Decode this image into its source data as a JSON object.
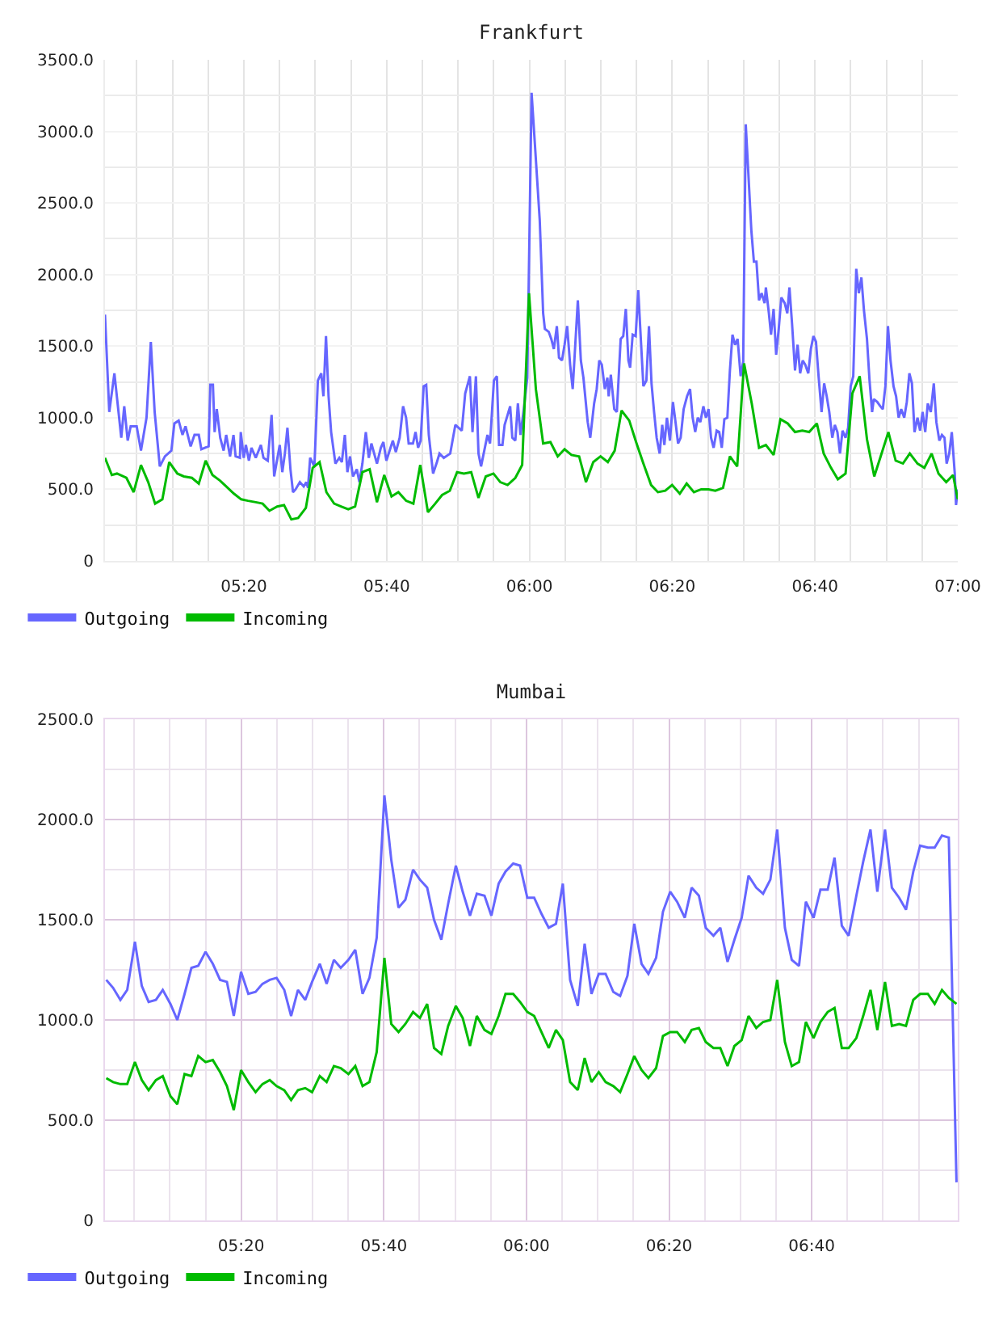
{
  "chart_data": [
    {
      "type": "line",
      "title": "Frankfurt",
      "series": [
        {
          "name": "Outgoing",
          "color": "#6666ff",
          "x": [
            5.009,
            5.019,
            5.031,
            5.047,
            5.054,
            5.062,
            5.069,
            5.083,
            5.093,
            5.106,
            5.116,
            5.125,
            5.137,
            5.149,
            5.164,
            5.171,
            5.181,
            5.19,
            5.197,
            5.209,
            5.218,
            5.228,
            5.234,
            5.251,
            5.255,
            5.261,
            5.265,
            5.27,
            5.278,
            5.286,
            5.292,
            5.301,
            5.309,
            5.314,
            5.324,
            5.326,
            5.333,
            5.338,
            5.345,
            5.351,
            5.361,
            5.373,
            5.379,
            5.389,
            5.398,
            5.404,
            5.417,
            5.423,
            5.429,
            5.435,
            5.442,
            5.448,
            5.454,
            5.464,
            5.473,
            5.479,
            5.483,
            5.488,
            5.498,
            5.506,
            5.514,
            5.519,
            5.525,
            5.531,
            5.537,
            5.547,
            5.556,
            5.562,
            5.569,
            5.575,
            5.581,
            5.588,
            5.597,
            5.603,
            5.61,
            5.618,
            5.625,
            5.631,
            5.644,
            5.653,
            5.659,
            5.666,
            5.681,
            5.688,
            5.697,
            5.705,
            5.712,
            5.718,
            5.728,
            5.734,
            5.74,
            5.746,
            5.753,
            5.759,
            5.765,
            5.775,
            5.784,
            5.79,
            5.8,
            5.815,
            5.827,
            5.842,
            5.85,
            5.861,
            5.867,
            5.875,
            5.881,
            5.887,
            5.902,
            5.908,
            5.917,
            5.924,
            5.929,
            5.937,
            5.942,
            5.949,
            5.955,
            5.96,
            5.967,
            5.973,
            5.979,
            5.986,
            5.995,
            6.005,
            6.014,
            6.024,
            6.032,
            6.036,
            6.045,
            6.051,
            6.057,
            6.064,
            6.069,
            6.076,
            6.082,
            6.088,
            6.095,
            6.101,
            6.107,
            6.113,
            6.12,
            6.126,
            6.136,
            6.142,
            6.151,
            6.157,
            6.163,
            6.169,
            6.176,
            6.182,
            6.185,
            6.19,
            6.198,
            6.204,
            6.213,
            6.219,
            6.225,
            6.231,
            6.235,
            6.241,
            6.248,
            6.254,
            6.26,
            6.266,
            6.273,
            6.279,
            6.285,
            6.291,
            6.297,
            6.304,
            6.31,
            6.315,
            6.321,
            6.328,
            6.335,
            6.341,
            6.347,
            6.353,
            6.36,
            6.368,
            6.375,
            6.381,
            6.387,
            6.393,
            6.399,
            6.406,
            6.412,
            6.418,
            6.424,
            6.43,
            6.437,
            6.443,
            6.449,
            6.455,
            6.462,
            6.468,
            6.474,
            6.48,
            6.486,
            6.493,
            6.499,
            6.505,
            6.511,
            6.518,
            6.524,
            6.53,
            6.536,
            6.542,
            6.549,
            6.552,
            6.559,
            6.564,
            6.57,
            6.576,
            6.582,
            6.588,
            6.596,
            6.602,
            6.607,
            6.613,
            6.62,
            6.626,
            6.632,
            6.638,
            6.644,
            6.651,
            6.657,
            6.663,
            6.669,
            6.675,
            6.682,
            6.688,
            6.694,
            6.7,
            6.707,
            6.713,
            6.719,
            6.725,
            6.731,
            6.738,
            6.744,
            6.75,
            6.756,
            6.763,
            6.769,
            6.775,
            6.781,
            6.788,
            6.794,
            6.8,
            6.804,
            6.812,
            6.819,
            6.825,
            6.831,
            6.837,
            6.843,
            6.85,
            6.856,
            6.862,
            6.868,
            6.875,
            6.881,
            6.887,
            6.893,
            6.899,
            6.906,
            6.912,
            6.918,
            6.924,
            6.93,
            6.937,
            6.944,
            6.95,
            6.957,
            6.963,
            6.969,
            6.974,
            6.98,
            6.986,
            6.993,
            6.996,
            7.0
          ],
          "values": [
            1720,
            1040,
            1310,
            860,
            1080,
            840,
            940,
            940,
            770,
            1000,
            1530,
            1040,
            660,
            730,
            770,
            960,
            980,
            880,
            940,
            800,
            880,
            880,
            780,
            800,
            1230,
            1230,
            900,
            1060,
            860,
            770,
            880,
            730,
            880,
            730,
            720,
            900,
            720,
            810,
            700,
            790,
            720,
            810,
            720,
            700,
            1020,
            590,
            810,
            620,
            750,
            930,
            640,
            480,
            500,
            550,
            520,
            550,
            510,
            720,
            660,
            1260,
            1310,
            1150,
            1570,
            1150,
            900,
            680,
            720,
            690,
            880,
            620,
            730,
            590,
            640,
            550,
            680,
            900,
            720,
            820,
            680,
            790,
            830,
            700,
            840,
            760,
            860,
            1080,
            1000,
            820,
            820,
            900,
            790,
            840,
            1220,
            1230,
            880,
            610,
            690,
            750,
            720,
            750,
            950,
            910,
            1170,
            1290,
            900,
            1290,
            750,
            660,
            880,
            820,
            1260,
            1290,
            810,
            810,
            950,
            1020,
            1080,
            860,
            840,
            1100,
            880,
            1040,
            1280,
            3270,
            2850,
            2380,
            1730,
            1620,
            1600,
            1550,
            1480,
            1640,
            1420,
            1400,
            1510,
            1640,
            1370,
            1200,
            1510,
            1820,
            1400,
            1280,
            970,
            860,
            1100,
            1200,
            1400,
            1370,
            1200,
            1280,
            1150,
            1300,
            1060,
            1040,
            1550,
            1570,
            1760,
            1400,
            1350,
            1580,
            1570,
            1890,
            1550,
            1220,
            1260,
            1640,
            1240,
            1040,
            860,
            750,
            950,
            810,
            1000,
            840,
            1110,
            970,
            820,
            860,
            1060,
            1150,
            1200,
            1000,
            900,
            1000,
            970,
            1080,
            1000,
            1060,
            860,
            790,
            910,
            900,
            790,
            990,
            1000,
            1330,
            1580,
            1510,
            1550,
            1290,
            1390,
            3050,
            2710,
            2310,
            2090,
            2090,
            1820,
            1870,
            1800,
            1910,
            1730,
            1580,
            1760,
            1440,
            1620,
            1840,
            1800,
            1730,
            1910,
            1660,
            1330,
            1510,
            1310,
            1400,
            1370,
            1310,
            1480,
            1570,
            1530,
            1290,
            1040,
            1240,
            1150,
            1040,
            860,
            950,
            900,
            750,
            910,
            860,
            930,
            1220,
            1290,
            2040,
            1870,
            1980,
            1750,
            1550,
            1260,
            1040,
            1130,
            1110,
            1080,
            1060,
            1220,
            1640,
            1400,
            1220,
            1150,
            1000,
            1060,
            1000,
            1110,
            1310,
            1240,
            900,
            1000,
            910,
            1040,
            900,
            1100,
            1040,
            1240,
            970,
            840,
            880,
            860,
            680,
            750,
            900,
            610,
            390,
            500
          ]
        },
        {
          "name": "Incoming",
          "color": "#00bb00",
          "x": [
            5.009,
            5.025,
            5.037,
            5.059,
            5.076,
            5.093,
            5.11,
            5.126,
            5.143,
            5.159,
            5.178,
            5.193,
            5.212,
            5.228,
            5.244,
            5.26,
            5.278,
            5.292,
            5.31,
            5.327,
            5.343,
            5.361,
            5.377,
            5.393,
            5.411,
            5.427,
            5.444,
            5.46,
            5.478,
            5.494,
            5.51,
            5.526,
            5.544,
            5.56,
            5.577,
            5.593,
            5.61,
            5.627,
            5.644,
            5.661,
            5.678,
            5.694,
            5.712,
            5.729,
            5.745,
            5.763,
            5.78,
            5.796,
            5.814,
            5.831,
            5.847,
            5.864,
            5.881,
            5.898,
            5.916,
            5.932,
            5.949,
            5.967,
            5.983,
            5.999,
            6.015,
            6.032,
            6.049,
            6.066,
            6.082,
            6.098,
            6.116,
            6.132,
            6.149,
            6.166,
            6.183,
            6.199,
            6.215,
            6.233,
            6.249,
            6.266,
            6.284,
            6.3,
            6.317,
            6.333,
            6.351,
            6.367,
            6.384,
            6.401,
            6.418,
            6.434,
            6.452,
            6.468,
            6.485,
            6.501,
            6.519,
            6.536,
            6.552,
            6.57,
            6.586,
            6.603,
            6.62,
            6.637,
            6.653,
            6.671,
            6.687,
            6.704,
            6.72,
            6.738,
            6.754,
            6.771,
            6.788,
            6.805,
            6.821,
            6.838,
            6.855,
            6.872,
            6.888,
            6.906,
            6.922,
            6.939,
            6.955,
            6.973,
            6.989,
            7.0
          ],
          "values": [
            720,
            600,
            610,
            580,
            480,
            670,
            550,
            400,
            430,
            690,
            610,
            590,
            580,
            540,
            700,
            600,
            560,
            520,
            470,
            430,
            420,
            410,
            400,
            350,
            380,
            390,
            290,
            300,
            370,
            650,
            690,
            480,
            400,
            380,
            360,
            380,
            620,
            640,
            410,
            600,
            450,
            480,
            420,
            400,
            670,
            340,
            400,
            460,
            490,
            620,
            610,
            620,
            440,
            590,
            610,
            550,
            530,
            580,
            670,
            1870,
            1200,
            820,
            830,
            730,
            780,
            740,
            730,
            550,
            690,
            730,
            690,
            770,
            1050,
            980,
            830,
            680,
            530,
            480,
            490,
            530,
            470,
            540,
            480,
            500,
            500,
            490,
            510,
            730,
            660,
            1380,
            1100,
            790,
            810,
            740,
            990,
            960,
            900,
            910,
            900,
            960,
            750,
            650,
            570,
            610,
            1170,
            1290,
            850,
            590,
            740,
            900,
            700,
            680,
            750,
            680,
            650,
            750,
            610,
            550,
            600,
            430
          ]
        }
      ],
      "xlim": [
        5.009,
        7.0
      ],
      "ylim": [
        0,
        3500
      ],
      "xticks": [
        {
          "value": 5.0833,
          "label": null
        },
        {
          "value": 5.1667,
          "label": null
        },
        {
          "value": 5.25,
          "label": null
        },
        {
          "value": 5.3333,
          "label": "05:20"
        },
        {
          "value": 5.4167,
          "label": null
        },
        {
          "value": 5.5,
          "label": null
        },
        {
          "value": 5.5833,
          "label": null
        },
        {
          "value": 5.6667,
          "label": "05:40"
        },
        {
          "value": 5.75,
          "label": null
        },
        {
          "value": 5.8333,
          "label": null
        },
        {
          "value": 5.9167,
          "label": null
        },
        {
          "value": 6,
          "label": "06:00"
        },
        {
          "value": 6.0833,
          "label": null
        },
        {
          "value": 6.1667,
          "label": null
        },
        {
          "value": 6.25,
          "label": null
        },
        {
          "value": 6.3333,
          "label": "06:20"
        },
        {
          "value": 6.4167,
          "label": null
        },
        {
          "value": 6.5,
          "label": null
        },
        {
          "value": 6.5833,
          "label": null
        },
        {
          "value": 6.6667,
          "label": "06:40"
        },
        {
          "value": 6.75,
          "label": null
        },
        {
          "value": 6.8333,
          "label": null
        },
        {
          "value": 6.9167,
          "label": null
        },
        {
          "value": 7,
          "label": "07:00"
        }
      ],
      "yticks": [
        0,
        {
          "value": 250,
          "label": null
        },
        {
          "value": 500,
          "label": "500.0"
        },
        {
          "value": 750,
          "label": null
        },
        {
          "value": 1000,
          "label": "1000.0"
        },
        {
          "value": 1250,
          "label": null
        },
        {
          "value": 1500,
          "label": "1500.0"
        },
        {
          "value": 1750,
          "label": null
        },
        {
          "value": 2000,
          "label": "2000.0"
        },
        {
          "value": 2250,
          "label": null
        },
        {
          "value": 2500,
          "label": "2500.0"
        },
        {
          "value": 2750,
          "label": null
        },
        {
          "value": 3000,
          "label": "3000.0"
        },
        {
          "value": 3250,
          "label": null
        },
        {
          "value": 3500,
          "label": "3500.0"
        }
      ],
      "grid": true,
      "legend": "bottom left"
    },
    {
      "type": "line",
      "title": "Mumbai",
      "x": [
        5.018,
        5.034,
        5.051,
        5.067,
        5.085,
        5.101,
        5.117,
        5.134,
        5.15,
        5.168,
        5.184,
        5.201,
        5.217,
        5.233,
        5.25,
        5.267,
        5.284,
        5.3,
        5.316,
        5.333,
        5.35,
        5.367,
        5.383,
        5.4,
        5.416,
        5.434,
        5.45,
        5.466,
        5.483,
        5.499,
        5.517,
        5.533,
        5.55,
        5.566,
        5.584,
        5.6,
        5.617,
        5.633,
        5.65,
        5.668,
        5.684,
        5.701,
        5.717,
        5.735,
        5.751,
        5.768,
        5.784,
        5.801,
        5.817,
        5.835,
        5.851,
        5.868,
        5.884,
        5.902,
        5.918,
        5.935,
        5.951,
        5.969,
        5.985,
        6.002,
        6.018,
        6.035,
        6.052,
        6.069,
        6.085,
        6.102,
        6.12,
        6.136,
        6.152,
        6.169,
        6.185,
        6.203,
        6.219,
        6.236,
        6.252,
        6.269,
        6.285,
        6.303,
        6.319,
        6.336,
        6.352,
        6.37,
        6.386,
        6.403,
        6.419,
        6.437,
        6.453,
        6.47,
        6.486,
        6.503,
        6.519,
        6.537,
        6.553,
        6.57,
        6.586,
        6.604,
        6.62,
        6.637,
        6.653,
        6.671,
        6.687,
        6.704,
        6.72,
        6.737,
        6.753,
        6.771,
        6.787,
        6.804,
        6.82,
        6.838,
        6.854,
        6.871,
        6.887,
        6.904,
        6.92,
        6.938,
        6.954,
        6.971,
        6.987,
        7.005
      ],
      "series": [
        {
          "name": "Outgoing",
          "color": "#6666ff",
          "values": [
            1200,
            1160,
            1100,
            1150,
            1390,
            1170,
            1090,
            1100,
            1150,
            1080,
            1000,
            1130,
            1260,
            1270,
            1340,
            1280,
            1200,
            1190,
            1020,
            1240,
            1130,
            1140,
            1180,
            1200,
            1210,
            1150,
            1020,
            1150,
            1100,
            1190,
            1280,
            1180,
            1300,
            1260,
            1300,
            1350,
            1130,
            1210,
            1410,
            2120,
            1800,
            1560,
            1600,
            1750,
            1700,
            1660,
            1500,
            1400,
            1580,
            1770,
            1640,
            1520,
            1630,
            1620,
            1520,
            1680,
            1740,
            1780,
            1770,
            1610,
            1610,
            1530,
            1460,
            1480,
            1680,
            1200,
            1070,
            1380,
            1130,
            1230,
            1230,
            1140,
            1120,
            1220,
            1480,
            1280,
            1230,
            1310,
            1540,
            1640,
            1590,
            1510,
            1660,
            1620,
            1460,
            1420,
            1460,
            1290,
            1400,
            1510,
            1720,
            1660,
            1630,
            1700,
            1950,
            1460,
            1300,
            1270,
            1590,
            1510,
            1650,
            1650,
            1810,
            1470,
            1420,
            1620,
            1790,
            1950,
            1640,
            1950,
            1660,
            1610,
            1550,
            1740,
            1870,
            1860,
            1860,
            1920,
            1910,
            190
          ]
        },
        {
          "name": "Incoming",
          "color": "#00bb00",
          "values": [
            710,
            690,
            680,
            680,
            790,
            700,
            650,
            700,
            720,
            620,
            580,
            730,
            720,
            820,
            790,
            800,
            740,
            670,
            550,
            750,
            690,
            640,
            680,
            700,
            670,
            650,
            600,
            650,
            660,
            640,
            720,
            690,
            770,
            760,
            730,
            770,
            670,
            690,
            840,
            1310,
            980,
            940,
            980,
            1040,
            1010,
            1080,
            860,
            830,
            970,
            1070,
            1010,
            870,
            1020,
            950,
            930,
            1020,
            1130,
            1130,
            1090,
            1040,
            1020,
            940,
            860,
            950,
            900,
            690,
            650,
            810,
            690,
            740,
            690,
            670,
            640,
            730,
            820,
            750,
            710,
            760,
            920,
            940,
            940,
            890,
            950,
            960,
            890,
            860,
            860,
            770,
            870,
            900,
            1020,
            960,
            990,
            1000,
            1200,
            890,
            770,
            790,
            990,
            910,
            990,
            1040,
            1060,
            860,
            860,
            910,
            1020,
            1150,
            950,
            1190,
            970,
            980,
            970,
            1100,
            1130,
            1130,
            1080,
            1150,
            1110,
            1080
          ]
        }
      ],
      "xlim": [
        5.015,
        7.008
      ],
      "ylim": [
        0,
        2500
      ],
      "xticks": [
        {
          "value": 5.0833,
          "label": null
        },
        {
          "value": 5.1667,
          "label": null
        },
        {
          "value": 5.25,
          "label": null
        },
        {
          "value": 5.3333,
          "label": "05:20"
        },
        {
          "value": 5.4167,
          "label": null
        },
        {
          "value": 5.5,
          "label": null
        },
        {
          "value": 5.5833,
          "label": null
        },
        {
          "value": 5.6667,
          "label": "05:40"
        },
        {
          "value": 5.75,
          "label": null
        },
        {
          "value": 5.8333,
          "label": null
        },
        {
          "value": 5.9167,
          "label": null
        },
        {
          "value": 6,
          "label": "06:00"
        },
        {
          "value": 6.0833,
          "label": null
        },
        {
          "value": 6.1667,
          "label": null
        },
        {
          "value": 6.25,
          "label": null
        },
        {
          "value": 6.3333,
          "label": "06:20"
        },
        {
          "value": 6.4167,
          "label": null
        },
        {
          "value": 6.5,
          "label": null
        },
        {
          "value": 6.5833,
          "label": null
        },
        {
          "value": 6.6667,
          "label": "06:40"
        },
        {
          "value": 6.75,
          "label": null
        },
        {
          "value": 6.8333,
          "label": null
        },
        {
          "value": 6.9167,
          "label": null
        }
      ],
      "yticks": [
        0,
        {
          "value": 250,
          "label": null
        },
        {
          "value": 500,
          "label": "500.0"
        },
        {
          "value": 750,
          "label": null
        },
        {
          "value": 1000,
          "label": "1000.0"
        },
        {
          "value": 1250,
          "label": null
        },
        {
          "value": 1500,
          "label": "1500.0"
        },
        {
          "value": 1750,
          "label": null
        },
        {
          "value": 2000,
          "label": "2000.0"
        },
        {
          "value": 2250,
          "label": null
        },
        {
          "value": 2500,
          "label": "2500.0"
        }
      ],
      "grid": true,
      "legend": "bottom left"
    }
  ]
}
